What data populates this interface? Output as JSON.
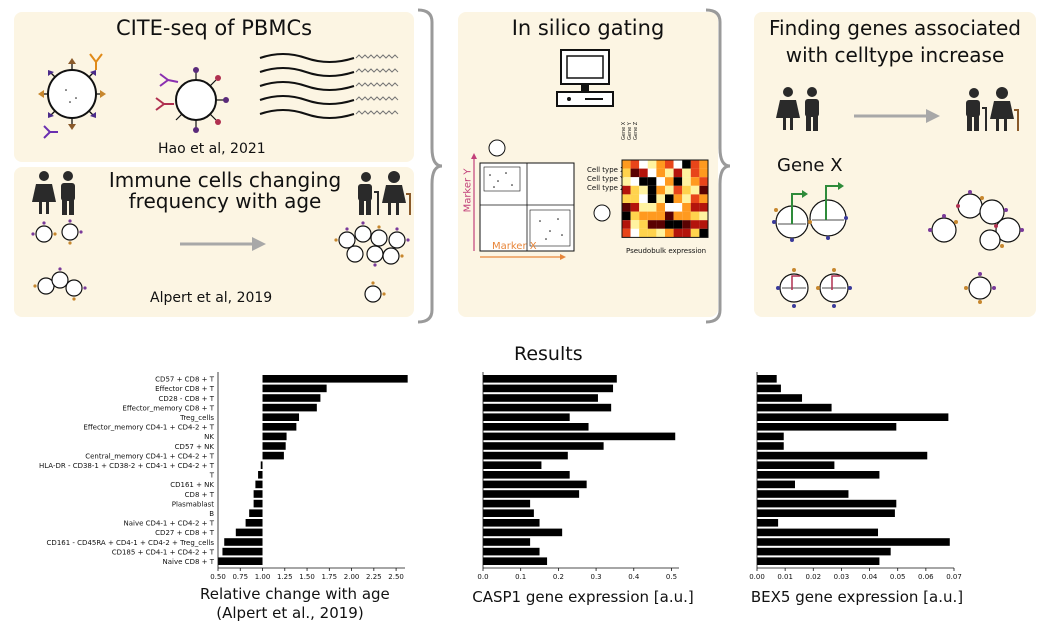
{
  "panels": {
    "cite_seq": {
      "title": "CITE-seq of PBMCs",
      "citation": "Hao et al, 2021"
    },
    "immune_age": {
      "title_line1": "Immune cells changing",
      "title_line2": "frequency with age",
      "citation": "Alpert et al, 2019"
    },
    "gating": {
      "title": "In silico gating",
      "x_marker": "Marker X",
      "y_marker": "Marker Y",
      "cell_types": [
        "Cell type X",
        "Cell type Y",
        "Cell type Z"
      ],
      "genes": [
        "Gene X",
        "Gene Y",
        "Gene Z"
      ],
      "heatmap_label": "Pseudobulk expression"
    },
    "genes_panel": {
      "title_line1": "Finding genes associated",
      "title_line2": "with celltype increase",
      "gene_label": "Gene X"
    }
  },
  "results_title": "Results",
  "colors": {
    "panel_bg": "#fcf5e3",
    "bar": "#000000",
    "bracket": "#9a9a9a",
    "arrow": "#a8a8a8",
    "gating_axis": "#e8863a",
    "gating_axis_y": "#c2407a",
    "gene_arrow": "#2e8b3a"
  },
  "chart_data": [
    {
      "type": "bar",
      "orientation": "horizontal",
      "xlabel_line1": "Relative change with age",
      "xlabel_line2": "(Alpert et al., 2019)",
      "baseline": 1.0,
      "xlim": [
        0.5,
        2.6
      ],
      "xticks": [
        "0.50",
        "0.75",
        "1.00",
        "1.25",
        "1.50",
        "1.75",
        "2.00",
        "2.25",
        "2.50"
      ],
      "categories": [
        "CD57 + CD8 + T",
        "Effector CD8 + T",
        "CD28 - CD8 + T",
        "Effector_memory CD8 + T",
        "Treg_cells",
        "Effector_memory CD4-1 + CD4-2 + T",
        "NK",
        "CD57 + NK",
        "Central_memory CD4-1 + CD4-2 + T",
        "HLA-DR - CD38-1 + CD38-2 + CD4-1 + CD4-2 + T",
        "T",
        "CD161 + NK",
        "CD8 + T",
        "Plasmablast",
        "B",
        "Naive CD4-1 + CD4-2 + T",
        "CD27 + CD8 + T",
        "CD161 - CD45RA + CD4-1 + CD4-2 + Treg_cells",
        "CD185 + CD4-1 + CD4-2 + T",
        "Naive CD8 + T"
      ],
      "values": [
        2.63,
        1.72,
        1.65,
        1.61,
        1.41,
        1.38,
        1.27,
        1.26,
        1.24,
        0.98,
        0.95,
        0.92,
        0.9,
        0.9,
        0.85,
        0.81,
        0.7,
        0.57,
        0.55,
        0.5
      ]
    },
    {
      "type": "bar",
      "orientation": "horizontal",
      "xlabel": "CASP1 gene expression [a.u.]",
      "xlim": [
        0,
        0.52
      ],
      "xticks": [
        "0.0",
        "0.1",
        "0.2",
        "0.3",
        "0.4",
        "0.5"
      ],
      "values": [
        0.355,
        0.345,
        0.305,
        0.34,
        0.23,
        0.28,
        0.51,
        0.32,
        0.225,
        0.155,
        0.23,
        0.275,
        0.255,
        0.125,
        0.135,
        0.15,
        0.21,
        0.125,
        0.15,
        0.17
      ]
    },
    {
      "type": "bar",
      "orientation": "horizontal",
      "xlabel": "BEX5 gene expression [a.u.]",
      "xlim": [
        0,
        0.07
      ],
      "xticks": [
        "0.00",
        "0.01",
        "0.02",
        "0.03",
        "0.04",
        "0.05",
        "0.06",
        "0.07"
      ],
      "values": [
        0.007,
        0.0085,
        0.016,
        0.0265,
        0.068,
        0.0495,
        0.0095,
        0.0095,
        0.0605,
        0.0275,
        0.0435,
        0.0135,
        0.0325,
        0.0495,
        0.049,
        0.0075,
        0.043,
        0.0685,
        0.0475,
        0.0435
      ]
    }
  ]
}
